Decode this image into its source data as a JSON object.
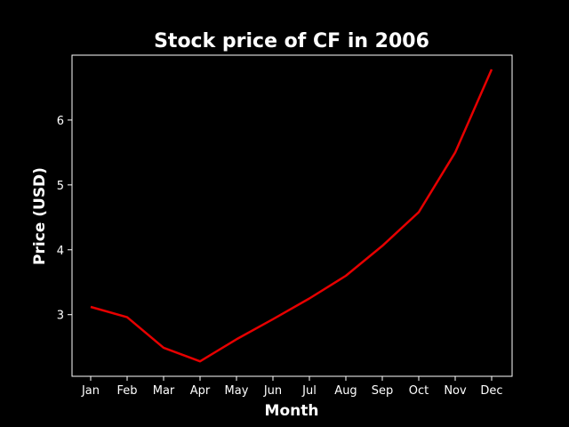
{
  "chart_data": {
    "type": "line",
    "title": "Stock price of CF in 2006",
    "xlabel": "Month",
    "ylabel": "Price (USD)",
    "categories": [
      "Jan",
      "Feb",
      "Mar",
      "Apr",
      "May",
      "Jun",
      "Jul",
      "Aug",
      "Sep",
      "Oct",
      "Nov",
      "Dec"
    ],
    "series": [
      {
        "values": [
          3.12,
          2.96,
          2.49,
          2.28,
          2.62,
          2.93,
          3.25,
          3.6,
          4.06,
          4.58,
          5.5,
          6.78
        ],
        "color": "#e60000"
      }
    ],
    "ylim": [
      2.05,
      7.0
    ],
    "yticks": [
      3,
      4,
      5,
      6
    ],
    "grid": false,
    "background": "#000000",
    "foreground": "#ffffff"
  }
}
